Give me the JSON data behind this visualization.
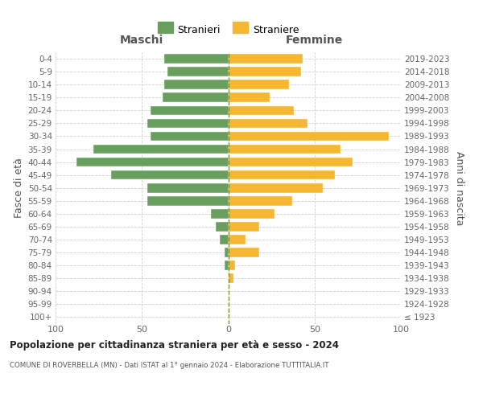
{
  "age_groups": [
    "100+",
    "95-99",
    "90-94",
    "85-89",
    "80-84",
    "75-79",
    "70-74",
    "65-69",
    "60-64",
    "55-59",
    "50-54",
    "45-49",
    "40-44",
    "35-39",
    "30-34",
    "25-29",
    "20-24",
    "15-19",
    "10-14",
    "5-9",
    "0-4"
  ],
  "birth_years": [
    "≤ 1923",
    "1924-1928",
    "1929-1933",
    "1934-1938",
    "1939-1943",
    "1944-1948",
    "1949-1953",
    "1954-1958",
    "1959-1963",
    "1964-1968",
    "1969-1973",
    "1974-1978",
    "1979-1983",
    "1984-1988",
    "1989-1993",
    "1994-1998",
    "1999-2003",
    "2004-2008",
    "2009-2013",
    "2014-2018",
    "2019-2023"
  ],
  "maschi": [
    0,
    0,
    0,
    0,
    2,
    2,
    5,
    7,
    10,
    47,
    47,
    68,
    88,
    78,
    45,
    47,
    45,
    38,
    37,
    35,
    37
  ],
  "femmine": [
    0,
    0,
    0,
    3,
    4,
    18,
    10,
    18,
    27,
    37,
    55,
    62,
    72,
    65,
    93,
    46,
    38,
    24,
    35,
    42,
    43
  ],
  "male_color": "#6a9e5f",
  "female_color": "#f5b731",
  "bg_color": "#ffffff",
  "grid_color": "#cccccc",
  "title": "Popolazione per cittadinanza straniera per età e sesso - 2024",
  "subtitle": "COMUNE DI ROVERBELLA (MN) - Dati ISTAT al 1° gennaio 2024 - Elaborazione TUTTITALIA.IT",
  "xlabel_left": "Maschi",
  "xlabel_right": "Femmine",
  "ylabel_left": "Fasce di età",
  "ylabel_right": "Anni di nascita",
  "legend_male": "Stranieri",
  "legend_female": "Straniere",
  "xlim": 100,
  "dashed_line_color": "#888833"
}
